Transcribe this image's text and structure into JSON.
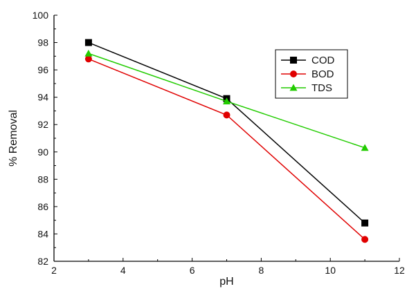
{
  "chart_data": {
    "type": "line",
    "xlabel": "pH",
    "ylabel": "% Removal",
    "xlim": [
      2,
      12
    ],
    "ylim": [
      82,
      100
    ],
    "xticks": [
      2,
      4,
      6,
      8,
      10,
      12
    ],
    "yticks": [
      82,
      84,
      86,
      88,
      90,
      92,
      94,
      96,
      98,
      100
    ],
    "x": [
      3,
      7,
      11
    ],
    "series": [
      {
        "name": "COD",
        "values": [
          98.0,
          93.9,
          84.8
        ],
        "color": "#000000",
        "marker": "square"
      },
      {
        "name": "BOD",
        "values": [
          96.8,
          92.7,
          83.6
        ],
        "color": "#e00000",
        "marker": "circle"
      },
      {
        "name": "TDS",
        "values": [
          97.2,
          93.7,
          90.3
        ],
        "color": "#22cc00",
        "marker": "triangle"
      }
    ],
    "legend_position": "top-right",
    "grid": false
  }
}
